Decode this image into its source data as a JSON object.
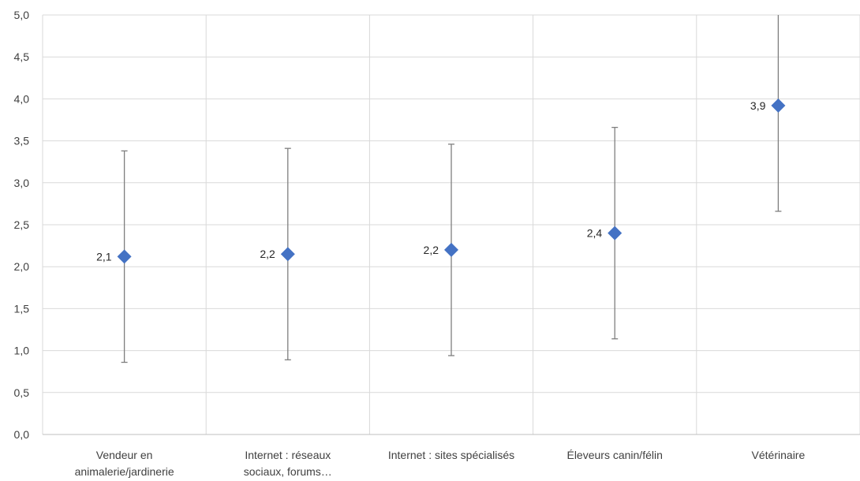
{
  "chart_data": {
    "type": "scatter",
    "title": "",
    "xlabel": "",
    "ylabel": "",
    "ylim": [
      0,
      5
    ],
    "yticks": [
      "0,0",
      "0,5",
      "1,0",
      "1,5",
      "2,0",
      "2,5",
      "3,0",
      "3,5",
      "4,0",
      "4,5",
      "5,0"
    ],
    "grid": true,
    "marker": "diamond",
    "marker_color": "#4472C4",
    "error_bar_color": "#7F7F7F",
    "categories": [
      [
        "Vendeur en",
        "animalerie/jardinerie"
      ],
      [
        "Internet : réseaux",
        "sociaux, forums…"
      ],
      [
        "Internet : sites spécialisés"
      ],
      [
        "Éleveurs canin/félin"
      ],
      [
        "Vétérinaire"
      ]
    ],
    "values": [
      2.12,
      2.15,
      2.2,
      2.4,
      3.92
    ],
    "value_labels": [
      "2,1",
      "2,2",
      "2,2",
      "2,4",
      "3,9"
    ],
    "error_low": [
      0.86,
      0.89,
      0.94,
      1.14,
      2.66
    ],
    "error_high": [
      3.38,
      3.41,
      3.46,
      3.66,
      5.18
    ]
  }
}
